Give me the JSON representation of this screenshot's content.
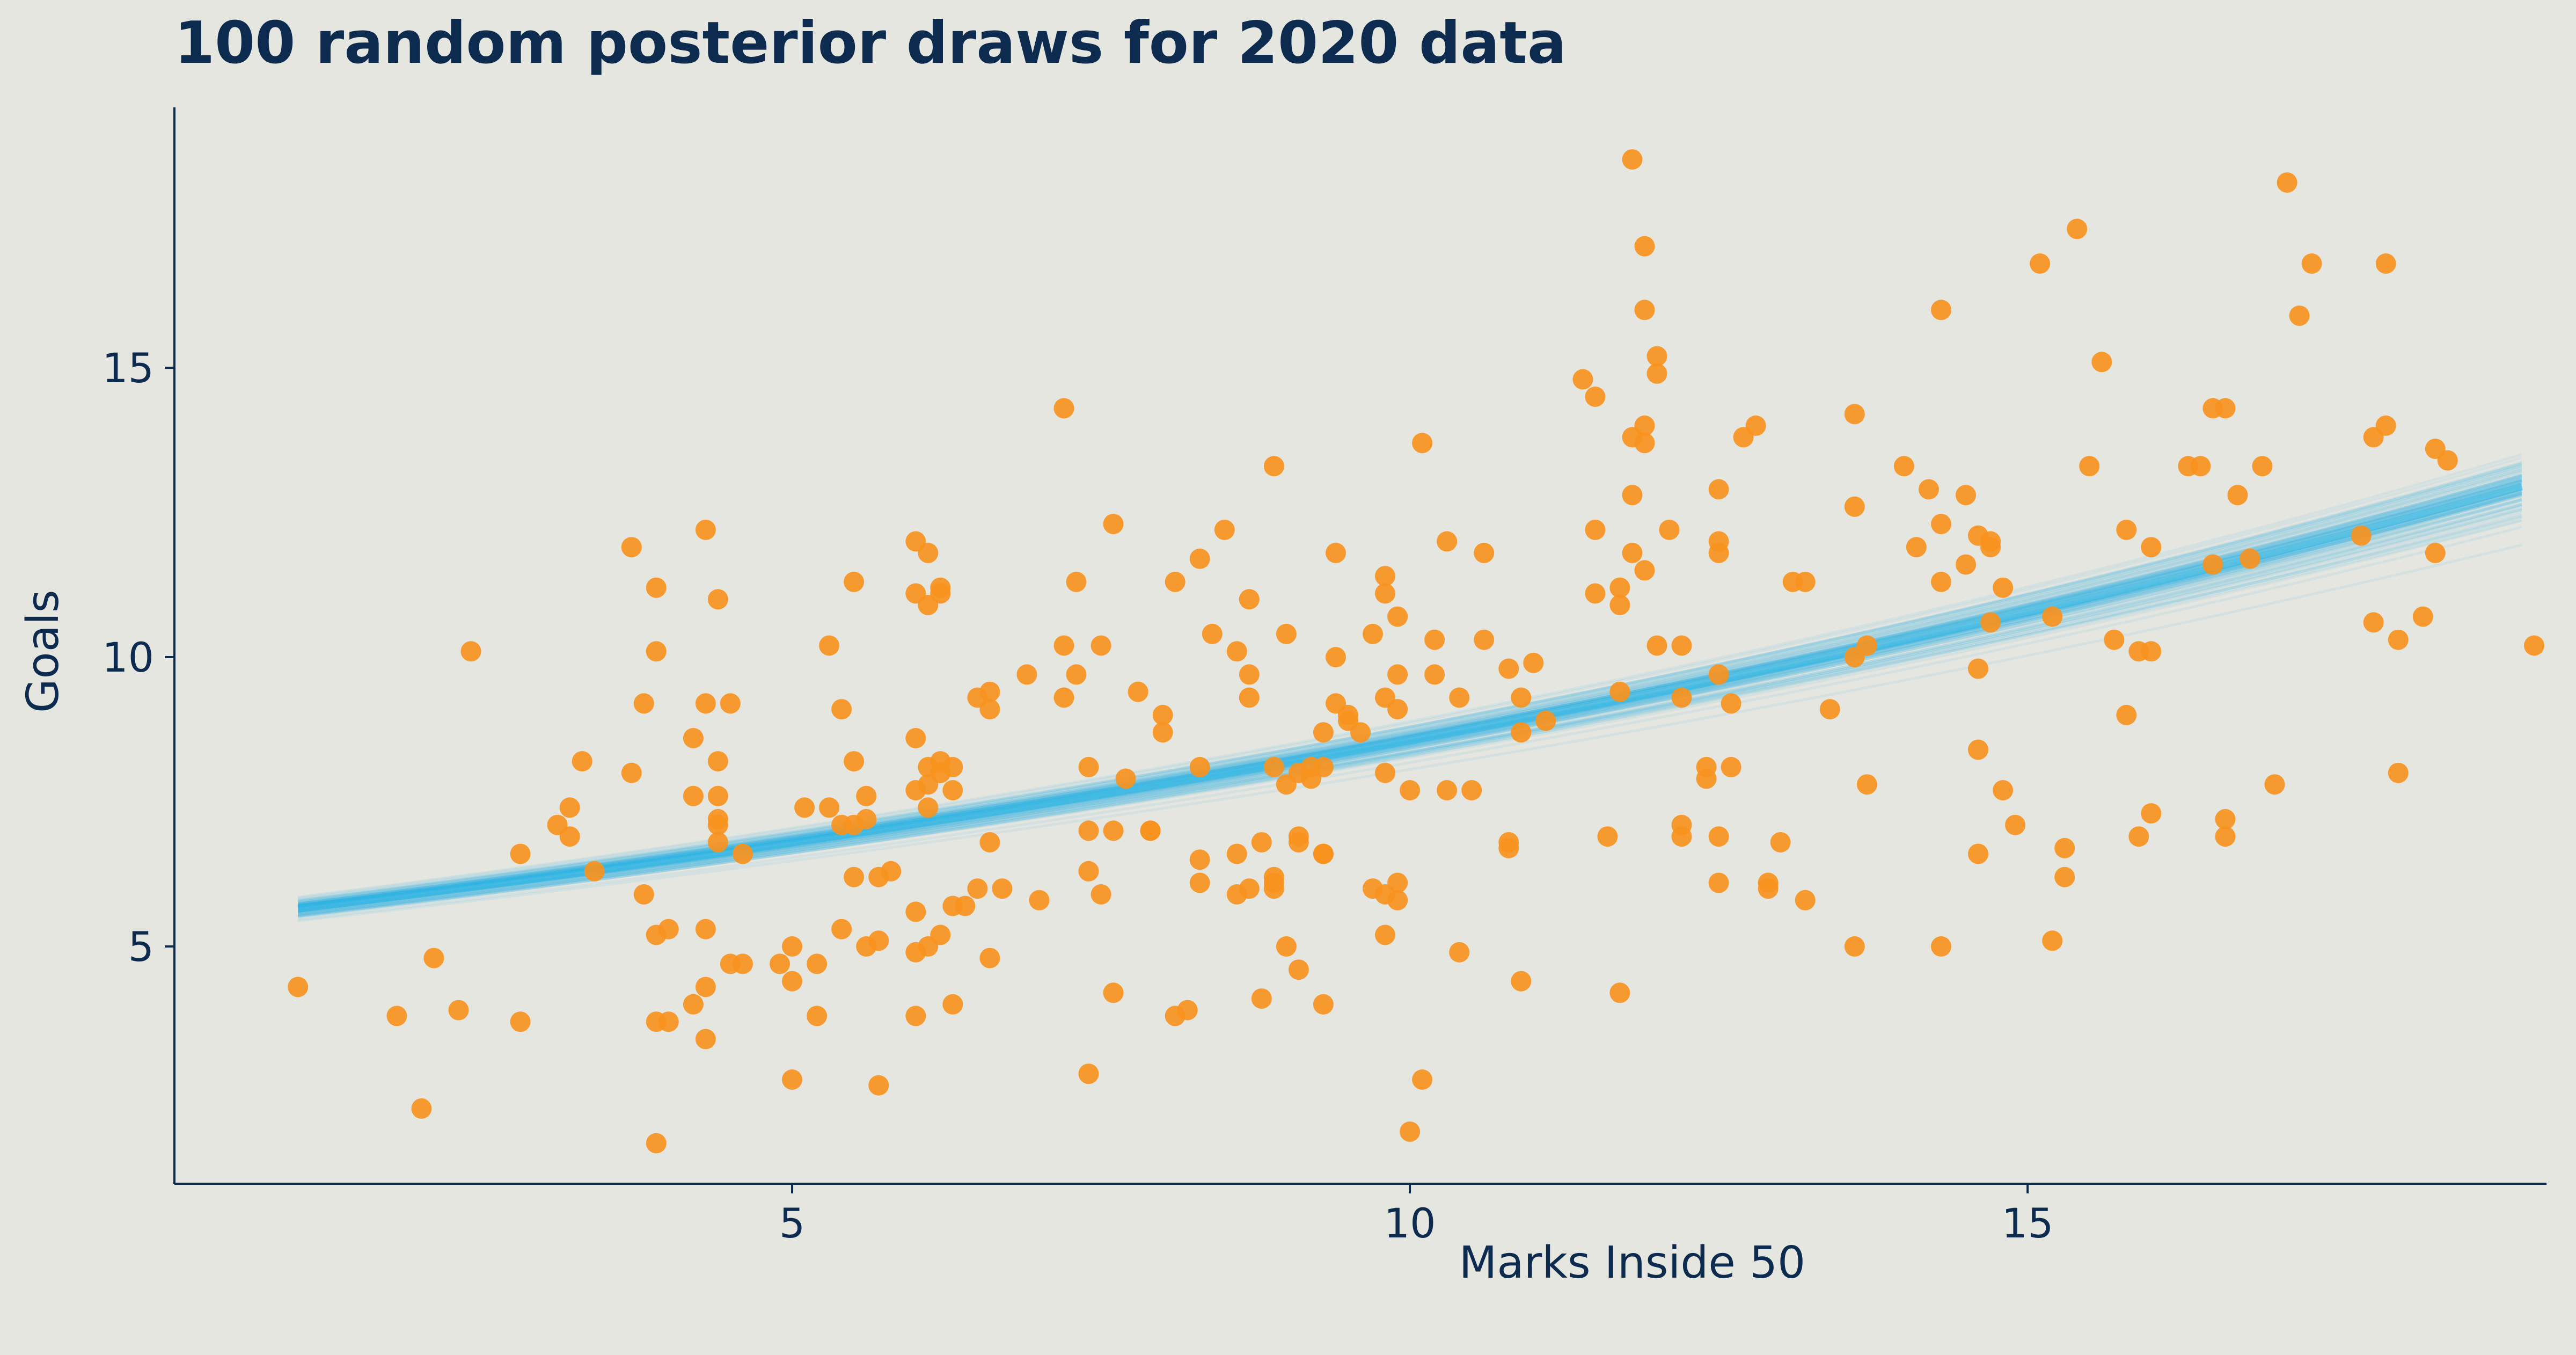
{
  "chart_data": {
    "type": "scatter",
    "title": "100 random posterior draws for 2020 data",
    "xlabel": "Marks Inside 50",
    "ylabel": "Goals",
    "xlim": [
      0,
      19.2
    ],
    "ylim": [
      0.9,
      19.5
    ],
    "xticks": [
      5,
      10,
      15
    ],
    "yticks": [
      5,
      10,
      15
    ],
    "grid": false,
    "colors": {
      "points": "#f7931e",
      "draws": "#29b6e6",
      "text": "#0d2a4f",
      "background": "#e6e6e0"
    },
    "regression": {
      "form": "exp(a + b*x)",
      "x_range": [
        1,
        19
      ],
      "n_draws": 100,
      "median_curve": [
        [
          1,
          5.65
        ],
        [
          5,
          6.95
        ],
        [
          10,
          8.6
        ],
        [
          15,
          10.65
        ],
        [
          19,
          12.95
        ]
      ],
      "lower_band": [
        [
          1,
          5.4
        ],
        [
          10,
          8.3
        ],
        [
          19,
          11.7
        ]
      ],
      "upper_band": [
        [
          1,
          5.9
        ],
        [
          10,
          8.85
        ],
        [
          19,
          13.75
        ]
      ]
    },
    "points": [
      [
        1.0,
        4.3
      ],
      [
        1.8,
        3.8
      ],
      [
        2.1,
        4.8
      ],
      [
        2.0,
        2.2
      ],
      [
        2.3,
        3.9
      ],
      [
        2.4,
        10.1
      ],
      [
        2.8,
        3.7
      ],
      [
        2.8,
        6.6
      ],
      [
        3.1,
        7.1
      ],
      [
        3.2,
        7.4
      ],
      [
        3.3,
        8.2
      ],
      [
        3.2,
        6.9
      ],
      [
        3.4,
        6.3
      ],
      [
        3.7,
        11.9
      ],
      [
        3.7,
        8.0
      ],
      [
        3.8,
        9.2
      ],
      [
        3.9,
        11.2
      ],
      [
        3.9,
        10.1
      ],
      [
        3.8,
        5.9
      ],
      [
        3.9,
        5.2
      ],
      [
        4.0,
        5.3
      ],
      [
        3.9,
        3.7
      ],
      [
        4.0,
        3.7
      ],
      [
        3.9,
        1.6
      ],
      [
        4.2,
        7.6
      ],
      [
        4.2,
        8.6
      ],
      [
        4.3,
        12.2
      ],
      [
        4.4,
        11.0
      ],
      [
        4.3,
        9.2
      ],
      [
        4.5,
        9.2
      ],
      [
        4.4,
        8.2
      ],
      [
        4.4,
        7.6
      ],
      [
        4.4,
        7.2
      ],
      [
        4.4,
        7.1
      ],
      [
        4.4,
        6.8
      ],
      [
        4.5,
        4.7
      ],
      [
        4.6,
        4.7
      ],
      [
        4.3,
        5.3
      ],
      [
        4.3,
        4.3
      ],
      [
        4.2,
        4.0
      ],
      [
        4.3,
        3.4
      ],
      [
        4.6,
        6.6
      ],
      [
        4.9,
        4.7
      ],
      [
        5.0,
        5.0
      ],
      [
        5.0,
        4.4
      ],
      [
        5.0,
        2.7
      ],
      [
        5.1,
        7.4
      ],
      [
        5.2,
        4.7
      ],
      [
        5.2,
        3.8
      ],
      [
        5.3,
        7.4
      ],
      [
        5.3,
        10.2
      ],
      [
        5.4,
        9.1
      ],
      [
        5.5,
        11.3
      ],
      [
        5.5,
        8.2
      ],
      [
        5.5,
        7.1
      ],
      [
        5.4,
        7.1
      ],
      [
        5.5,
        6.2
      ],
      [
        5.4,
        5.3
      ],
      [
        5.6,
        7.6
      ],
      [
        5.6,
        7.2
      ],
      [
        5.6,
        5.0
      ],
      [
        5.7,
        5.1
      ],
      [
        5.7,
        2.6
      ],
      [
        5.7,
        6.2
      ],
      [
        5.8,
        6.3
      ],
      [
        6.0,
        12.0
      ],
      [
        6.1,
        11.8
      ],
      [
        6.0,
        11.1
      ],
      [
        6.2,
        11.2
      ],
      [
        6.2,
        11.1
      ],
      [
        6.1,
        10.9
      ],
      [
        6.0,
        8.6
      ],
      [
        6.1,
        8.1
      ],
      [
        6.2,
        8.2
      ],
      [
        6.2,
        8.0
      ],
      [
        6.0,
        7.7
      ],
      [
        6.1,
        7.8
      ],
      [
        6.3,
        8.1
      ],
      [
        6.3,
        7.7
      ],
      [
        6.1,
        7.4
      ],
      [
        6.0,
        5.6
      ],
      [
        6.1,
        5.0
      ],
      [
        6.0,
        4.9
      ],
      [
        6.0,
        3.8
      ],
      [
        6.2,
        5.2
      ],
      [
        6.3,
        5.7
      ],
      [
        6.4,
        5.7
      ],
      [
        6.3,
        4.0
      ],
      [
        6.5,
        9.3
      ],
      [
        6.6,
        9.4
      ],
      [
        6.6,
        9.1
      ],
      [
        6.6,
        6.8
      ],
      [
        6.5,
        6.0
      ],
      [
        6.6,
        4.8
      ],
      [
        6.7,
        6.0
      ],
      [
        6.9,
        9.7
      ],
      [
        7.0,
        5.8
      ],
      [
        7.2,
        14.3
      ],
      [
        7.2,
        10.2
      ],
      [
        7.2,
        9.3
      ],
      [
        7.3,
        9.7
      ],
      [
        7.3,
        11.3
      ],
      [
        7.5,
        10.2
      ],
      [
        7.4,
        8.1
      ],
      [
        7.4,
        7.0
      ],
      [
        7.4,
        6.3
      ],
      [
        7.5,
        5.9
      ],
      [
        7.4,
        2.8
      ],
      [
        7.6,
        12.3
      ],
      [
        7.6,
        7.0
      ],
      [
        7.7,
        7.9
      ],
      [
        7.6,
        4.2
      ],
      [
        7.8,
        9.4
      ],
      [
        7.9,
        7.0
      ],
      [
        7.9,
        7.0
      ],
      [
        8.0,
        9.0
      ],
      [
        8.0,
        8.7
      ],
      [
        8.1,
        11.3
      ],
      [
        8.1,
        3.8
      ],
      [
        8.2,
        3.9
      ],
      [
        8.3,
        8.1
      ],
      [
        8.4,
        10.4
      ],
      [
        8.3,
        6.5
      ],
      [
        8.3,
        6.1
      ],
      [
        8.3,
        11.7
      ],
      [
        8.5,
        12.2
      ],
      [
        8.6,
        10.1
      ],
      [
        8.7,
        11.0
      ],
      [
        8.7,
        9.7
      ],
      [
        8.7,
        9.3
      ],
      [
        8.6,
        6.6
      ],
      [
        8.7,
        6.0
      ],
      [
        8.6,
        5.9
      ],
      [
        8.8,
        4.1
      ],
      [
        8.9,
        13.3
      ],
      [
        8.9,
        8.1
      ],
      [
        8.8,
        6.8
      ],
      [
        8.9,
        6.2
      ],
      [
        8.9,
        6.1
      ],
      [
        8.9,
        6.0
      ],
      [
        9.0,
        10.4
      ],
      [
        9.0,
        7.8
      ],
      [
        9.1,
        6.9
      ],
      [
        9.1,
        6.8
      ],
      [
        9.1,
        8.0
      ],
      [
        9.0,
        5.0
      ],
      [
        9.1,
        4.6
      ],
      [
        9.3,
        8.1
      ],
      [
        9.2,
        8.1
      ],
      [
        9.2,
        7.9
      ],
      [
        9.3,
        6.6
      ],
      [
        9.3,
        4.0
      ],
      [
        9.3,
        6.6
      ],
      [
        9.4,
        11.8
      ],
      [
        9.4,
        10.0
      ],
      [
        9.4,
        9.2
      ],
      [
        9.3,
        8.7
      ],
      [
        9.5,
        9.0
      ],
      [
        9.5,
        8.9
      ],
      [
        9.6,
        8.7
      ],
      [
        9.7,
        10.4
      ],
      [
        9.8,
        11.4
      ],
      [
        9.8,
        11.1
      ],
      [
        9.7,
        6.0
      ],
      [
        9.8,
        5.9
      ],
      [
        9.8,
        8.0
      ],
      [
        9.9,
        9.7
      ],
      [
        9.8,
        9.3
      ],
      [
        9.9,
        6.1
      ],
      [
        9.9,
        5.8
      ],
      [
        9.8,
        5.2
      ],
      [
        9.9,
        10.7
      ],
      [
        9.9,
        9.1
      ],
      [
        10.0,
        7.7
      ],
      [
        10.1,
        2.7
      ],
      [
        10.0,
        1.8
      ],
      [
        10.1,
        13.7
      ],
      [
        10.2,
        10.3
      ],
      [
        10.2,
        9.7
      ],
      [
        10.4,
        9.3
      ],
      [
        10.3,
        12.0
      ],
      [
        10.3,
        7.7
      ],
      [
        10.5,
        7.7
      ],
      [
        10.4,
        4.9
      ],
      [
        10.6,
        11.8
      ],
      [
        10.6,
        10.3
      ],
      [
        10.8,
        6.8
      ],
      [
        10.8,
        9.8
      ],
      [
        10.9,
        9.3
      ],
      [
        10.9,
        8.7
      ],
      [
        10.8,
        6.7
      ],
      [
        10.9,
        4.4
      ],
      [
        11.0,
        9.9
      ],
      [
        11.1,
        8.9
      ],
      [
        11.5,
        12.2
      ],
      [
        11.4,
        14.8
      ],
      [
        11.5,
        14.5
      ],
      [
        11.8,
        13.8
      ],
      [
        11.7,
        10.9
      ],
      [
        11.7,
        11.2
      ],
      [
        11.5,
        11.1
      ],
      [
        11.6,
        6.9
      ],
      [
        11.7,
        4.2
      ],
      [
        11.7,
        9.4
      ],
      [
        11.8,
        11.8
      ],
      [
        11.8,
        18.6
      ],
      [
        11.9,
        17.1
      ],
      [
        11.9,
        16.0
      ],
      [
        12.0,
        15.2
      ],
      [
        12.0,
        14.9
      ],
      [
        11.9,
        14.0
      ],
      [
        11.9,
        13.7
      ],
      [
        11.8,
        12.8
      ],
      [
        11.9,
        11.5
      ],
      [
        12.0,
        10.2
      ],
      [
        12.1,
        12.2
      ],
      [
        12.2,
        10.2
      ],
      [
        12.2,
        9.3
      ],
      [
        12.2,
        6.9
      ],
      [
        12.2,
        7.1
      ],
      [
        12.4,
        7.9
      ],
      [
        12.4,
        8.1
      ],
      [
        12.5,
        11.8
      ],
      [
        12.5,
        12.9
      ],
      [
        12.5,
        12.0
      ],
      [
        12.5,
        9.7
      ],
      [
        12.6,
        9.2
      ],
      [
        12.5,
        6.9
      ],
      [
        12.5,
        6.1
      ],
      [
        12.6,
        8.1
      ],
      [
        12.7,
        13.8
      ],
      [
        12.8,
        14.0
      ],
      [
        12.9,
        6.1
      ],
      [
        12.9,
        6.0
      ],
      [
        13.0,
        6.8
      ],
      [
        13.1,
        11.3
      ],
      [
        13.2,
        11.3
      ],
      [
        13.2,
        5.8
      ],
      [
        13.4,
        9.1
      ],
      [
        13.6,
        14.2
      ],
      [
        13.6,
        12.6
      ],
      [
        13.6,
        10.0
      ],
      [
        13.7,
        10.2
      ],
      [
        13.7,
        7.8
      ],
      [
        13.6,
        5.0
      ],
      [
        14.0,
        13.3
      ],
      [
        14.1,
        11.9
      ],
      [
        14.2,
        12.9
      ],
      [
        14.3,
        16.0
      ],
      [
        14.3,
        12.3
      ],
      [
        14.3,
        11.3
      ],
      [
        14.3,
        5.0
      ],
      [
        14.5,
        11.6
      ],
      [
        14.5,
        12.8
      ],
      [
        14.6,
        12.1
      ],
      [
        14.7,
        10.6
      ],
      [
        14.6,
        9.8
      ],
      [
        14.6,
        8.4
      ],
      [
        14.6,
        6.6
      ],
      [
        14.7,
        11.9
      ],
      [
        14.7,
        12.0
      ],
      [
        14.8,
        11.2
      ],
      [
        14.8,
        7.7
      ],
      [
        14.9,
        7.1
      ],
      [
        15.1,
        16.8
      ],
      [
        15.2,
        10.7
      ],
      [
        15.3,
        6.7
      ],
      [
        15.3,
        6.2
      ],
      [
        15.2,
        5.1
      ],
      [
        15.4,
        17.4
      ],
      [
        15.5,
        13.3
      ],
      [
        15.6,
        15.1
      ],
      [
        15.7,
        10.3
      ],
      [
        15.8,
        12.2
      ],
      [
        15.8,
        9.0
      ],
      [
        15.9,
        6.9
      ],
      [
        16.0,
        7.3
      ],
      [
        15.9,
        10.1
      ],
      [
        16.0,
        10.1
      ],
      [
        16.0,
        11.9
      ],
      [
        16.3,
        13.3
      ],
      [
        16.4,
        13.3
      ],
      [
        16.5,
        14.3
      ],
      [
        16.6,
        14.3
      ],
      [
        16.5,
        11.6
      ],
      [
        16.6,
        7.2
      ],
      [
        16.6,
        6.9
      ],
      [
        16.7,
        12.8
      ],
      [
        16.8,
        11.7
      ],
      [
        16.9,
        13.3
      ],
      [
        17.0,
        7.8
      ],
      [
        17.1,
        18.2
      ],
      [
        17.7,
        12.1
      ],
      [
        17.8,
        13.8
      ],
      [
        17.9,
        14.0
      ],
      [
        17.9,
        16.8
      ],
      [
        18.0,
        8.0
      ],
      [
        18.2,
        10.7
      ],
      [
        18.3,
        11.8
      ],
      [
        18.4,
        13.4
      ],
      [
        17.2,
        15.9
      ],
      [
        17.3,
        16.8
      ],
      [
        17.8,
        10.6
      ],
      [
        18.0,
        10.3
      ],
      [
        18.3,
        13.6
      ],
      [
        19.1,
        10.2
      ]
    ]
  }
}
